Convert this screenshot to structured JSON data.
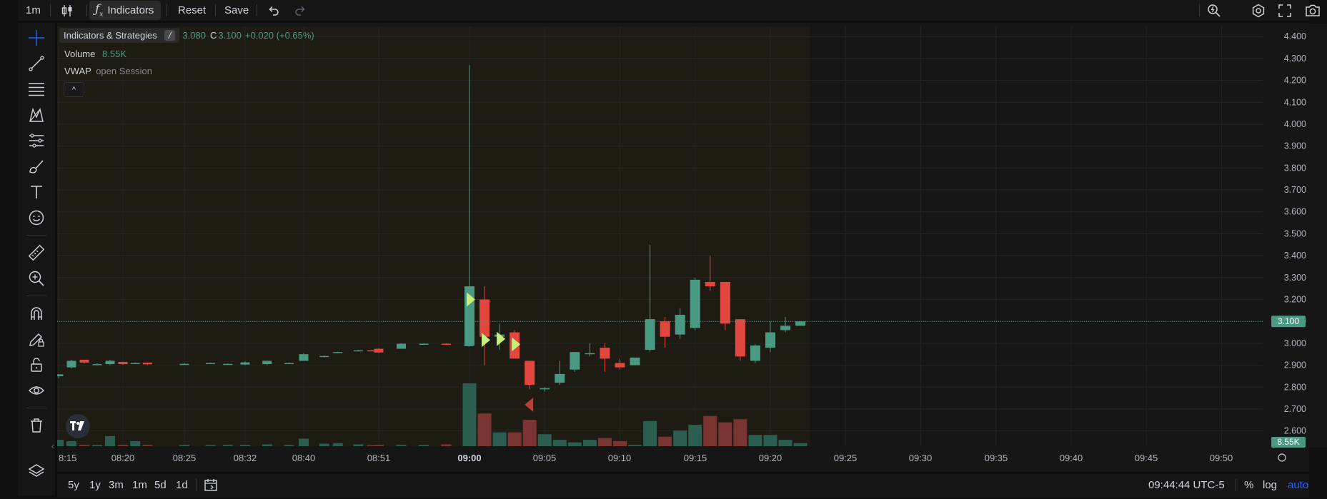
{
  "toolbar": {
    "interval": "1m",
    "indicators_label": "Indicators",
    "reset_label": "Reset",
    "save_label": "Save",
    "indicators_icon": "fx-icon",
    "chart_type_icon": "candles-icon"
  },
  "legend": {
    "tooltip": "Indicators & Strategies",
    "tooltip_key": "/",
    "ohlc_partial": "3.080",
    "close_label": "C",
    "close_value": "3.100",
    "change": "+0.020 (+0.65%)",
    "volume_label": "Volume",
    "volume_value": "8.55K",
    "vwap_label": "VWAP",
    "vwap_args": "open Session",
    "collapse_glyph": "^"
  },
  "price_axis": {
    "ticks": [
      "4.400",
      "4.300",
      "4.200",
      "4.100",
      "4.000",
      "3.900",
      "3.800",
      "3.700",
      "3.600",
      "3.500",
      "3.400",
      "3.300",
      "3.200",
      "3.100",
      "3.000",
      "2.900",
      "2.800",
      "2.700",
      "2.600"
    ],
    "last_price": "3.100",
    "last_volume": "8.55K"
  },
  "time_axis": {
    "labels": [
      "8:15",
      "08:20",
      "08:25",
      "08:32",
      "08:40",
      "08:51",
      "09:00",
      "09:05",
      "09:10",
      "09:15",
      "09:20",
      "09:25",
      "09:30",
      "09:35",
      "09:40",
      "09:45",
      "09:50"
    ],
    "bold_label": "09:00"
  },
  "bottom": {
    "ranges": [
      "5y",
      "1y",
      "3m",
      "1m",
      "5d",
      "1d"
    ],
    "clock": "09:44:44 UTC-5",
    "percent": "%",
    "log": "log",
    "auto": "auto"
  },
  "colors": {
    "up": "#4a9a83",
    "down": "#e1473f",
    "vol_up": "#2b5d50",
    "vol_down": "#7a3431",
    "session_bg": "#1e1b13",
    "accent_blue": "#2962ff",
    "signal": "#c6f07a"
  },
  "chart_data": {
    "type": "candlestick",
    "ylim": [
      2.55,
      4.43
    ],
    "premarket_candles": [
      {
        "t": "08:15",
        "o": 2.85,
        "h": 2.86,
        "l": 2.84,
        "c": 2.858
      },
      {
        "t": "08:16",
        "o": 2.89,
        "h": 2.925,
        "l": 2.885,
        "c": 2.92
      },
      {
        "t": "08:17",
        "o": 2.925,
        "h": 2.925,
        "l": 2.908,
        "c": 2.912
      },
      {
        "t": "08:18",
        "o": 2.905,
        "h": 2.91,
        "l": 2.9,
        "c": 2.905
      },
      {
        "t": "08:19",
        "o": 2.905,
        "h": 2.925,
        "l": 2.9,
        "c": 2.92
      },
      {
        "t": "08:20",
        "o": 2.915,
        "h": 2.915,
        "l": 2.902,
        "c": 2.905
      },
      {
        "t": "08:21",
        "o": 2.908,
        "h": 2.912,
        "l": 2.905,
        "c": 2.91
      },
      {
        "t": "08:22",
        "o": 2.912,
        "h": 2.912,
        "l": 2.9,
        "c": 2.904
      },
      {
        "t": "08:25",
        "o": 2.905,
        "h": 2.91,
        "l": 2.903,
        "c": 2.906
      },
      {
        "t": "08:28",
        "o": 2.906,
        "h": 2.912,
        "l": 2.905,
        "c": 2.91
      },
      {
        "t": "08:30",
        "o": 2.905,
        "h": 2.908,
        "l": 2.903,
        "c": 2.906
      },
      {
        "t": "08:32",
        "o": 2.903,
        "h": 2.918,
        "l": 2.9,
        "c": 2.913
      },
      {
        "t": "08:35",
        "o": 2.905,
        "h": 2.92,
        "l": 2.9,
        "c": 2.92
      },
      {
        "t": "08:38",
        "o": 2.91,
        "h": 2.912,
        "l": 2.905,
        "c": 2.91
      },
      {
        "t": "08:40",
        "o": 2.92,
        "h": 2.955,
        "l": 2.92,
        "c": 2.95
      },
      {
        "t": "08:43",
        "o": 2.94,
        "h": 2.945,
        "l": 2.935,
        "c": 2.942
      },
      {
        "t": "08:45",
        "o": 2.958,
        "h": 2.962,
        "l": 2.955,
        "c": 2.96
      },
      {
        "t": "08:48",
        "o": 2.966,
        "h": 2.97,
        "l": 2.963,
        "c": 2.968
      },
      {
        "t": "08:50",
        "o": 2.968,
        "h": 2.97,
        "l": 2.965,
        "c": 2.966
      },
      {
        "t": "08:51",
        "o": 2.975,
        "h": 2.978,
        "l": 2.955,
        "c": 2.958
      },
      {
        "t": "08:53",
        "o": 2.975,
        "h": 3.0,
        "l": 2.975,
        "c": 2.998
      },
      {
        "t": "08:55",
        "o": 2.995,
        "h": 3.0,
        "l": 2.992,
        "c": 2.998
      },
      {
        "t": "08:57",
        "o": 2.998,
        "h": 3.0,
        "l": 2.995,
        "c": 2.996
      },
      {
        "t": "08:59",
        "o": 2.99,
        "h": 2.995,
        "l": 2.985,
        "c": 2.992
      }
    ],
    "session_candles": [
      {
        "t": "09:00",
        "o": 2.99,
        "h": 4.27,
        "l": 2.99,
        "c": 3.26
      },
      {
        "t": "09:01",
        "o": 3.2,
        "h": 3.26,
        "l": 2.9,
        "c": 3.03
      },
      {
        "t": "09:02",
        "o": 3.03,
        "h": 3.09,
        "l": 2.97,
        "c": 3.04
      },
      {
        "t": "09:03",
        "o": 3.05,
        "h": 3.06,
        "l": 2.93,
        "c": 2.93
      },
      {
        "t": "09:04",
        "o": 2.92,
        "h": 2.92,
        "l": 2.79,
        "c": 2.81
      },
      {
        "t": "09:05",
        "o": 2.79,
        "h": 2.8,
        "l": 2.78,
        "c": 2.795
      },
      {
        "t": "09:06",
        "o": 2.82,
        "h": 2.92,
        "l": 2.81,
        "c": 2.86
      },
      {
        "t": "09:07",
        "o": 2.88,
        "h": 2.96,
        "l": 2.87,
        "c": 2.96
      },
      {
        "t": "09:08",
        "o": 2.95,
        "h": 3.0,
        "l": 2.94,
        "c": 2.955
      },
      {
        "t": "09:09",
        "o": 2.98,
        "h": 3.0,
        "l": 2.87,
        "c": 2.93
      },
      {
        "t": "09:10",
        "o": 2.91,
        "h": 2.93,
        "l": 2.88,
        "c": 2.89
      },
      {
        "t": "09:11",
        "o": 2.9,
        "h": 2.93,
        "l": 2.9,
        "c": 2.935
      },
      {
        "t": "09:12",
        "o": 2.97,
        "h": 3.45,
        "l": 2.96,
        "c": 3.11
      },
      {
        "t": "09:13",
        "o": 3.1,
        "h": 3.12,
        "l": 2.98,
        "c": 3.03
      },
      {
        "t": "09:14",
        "o": 3.04,
        "h": 3.16,
        "l": 3.02,
        "c": 3.13
      },
      {
        "t": "09:15",
        "o": 3.07,
        "h": 3.3,
        "l": 3.06,
        "c": 3.29
      },
      {
        "t": "09:16",
        "o": 3.28,
        "h": 3.4,
        "l": 3.24,
        "c": 3.26
      },
      {
        "t": "09:17",
        "o": 3.28,
        "h": 3.28,
        "l": 3.06,
        "c": 3.09
      },
      {
        "t": "09:18",
        "o": 3.11,
        "h": 3.11,
        "l": 2.92,
        "c": 2.94
      },
      {
        "t": "09:19",
        "o": 2.92,
        "h": 2.995,
        "l": 2.91,
        "c": 2.99
      },
      {
        "t": "09:20",
        "o": 2.98,
        "h": 3.1,
        "l": 2.96,
        "c": 3.05
      },
      {
        "t": "09:21",
        "o": 3.06,
        "h": 3.12,
        "l": 3.05,
        "c": 3.08
      },
      {
        "t": "09:22",
        "o": 3.08,
        "h": 3.1,
        "l": 3.08,
        "c": 3.1
      }
    ],
    "premarket_volume_fraction": [
      0.1,
      0.08,
      0.02,
      0.02,
      0.16,
      0.02,
      0.08,
      0.02,
      0.02,
      0.01,
      0.02,
      0.02,
      0.03,
      0.02,
      0.12,
      0.04,
      0.05,
      0.03,
      0.01,
      0.02,
      0.02,
      0.02,
      0.03,
      0.04
    ],
    "session_volume_fraction": [
      1.0,
      0.52,
      0.22,
      0.22,
      0.42,
      0.19,
      0.1,
      0.06,
      0.1,
      0.13,
      0.08,
      0.02,
      0.4,
      0.15,
      0.25,
      0.34,
      0.48,
      0.38,
      0.43,
      0.18,
      0.18,
      0.1,
      0.05
    ],
    "signals": [
      {
        "t": "09:00",
        "price": 3.2,
        "dir": "buy"
      },
      {
        "t": "09:01",
        "price": 3.015,
        "dir": "buy"
      },
      {
        "t": "09:02",
        "price": 3.02,
        "dir": "buy"
      },
      {
        "t": "09:03",
        "price": 2.995,
        "dir": "buy"
      },
      {
        "t": "09:04",
        "price": 2.72,
        "dir": "sell"
      }
    ]
  }
}
